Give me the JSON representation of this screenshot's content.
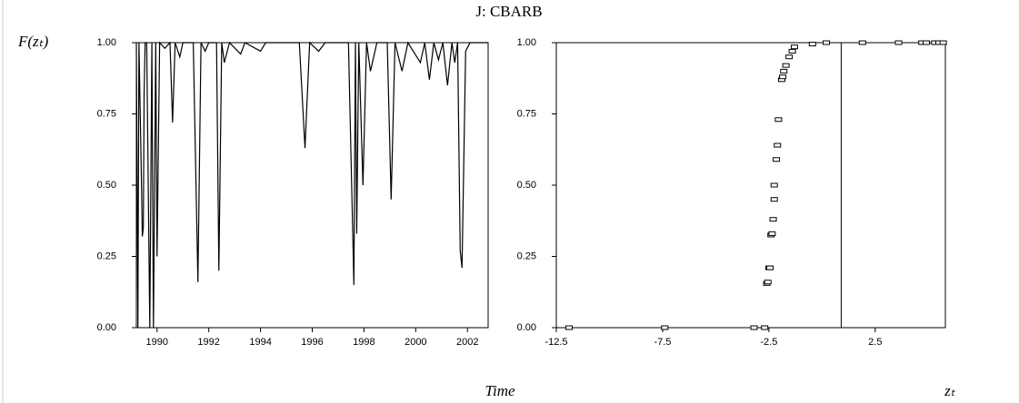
{
  "title": "J: CBARB",
  "y_label": "F(zₜ)",
  "chart_data": [
    {
      "type": "line",
      "x_label": "Time",
      "color": "#000000",
      "x": [
        1989.2,
        1989.26,
        1989.3,
        1989.4,
        1989.43,
        1989.47,
        1989.5,
        1989.54,
        1989.6,
        1989.72,
        1989.8,
        1989.86,
        1989.95,
        1990.0,
        1990.1,
        1990.3,
        1990.5,
        1990.6,
        1990.7,
        1990.88,
        1991.0,
        1991.4,
        1991.58,
        1991.7,
        1991.86,
        1992.0,
        1992.3,
        1992.39,
        1992.5,
        1992.6,
        1992.8,
        1993.23,
        1993.4,
        1994.0,
        1994.2,
        1995.5,
        1995.72,
        1995.9,
        1996.25,
        1996.5,
        1997.4,
        1997.61,
        1997.67,
        1997.72,
        1997.8,
        1997.96,
        1998.1,
        1998.25,
        1998.5,
        1998.9,
        1999.05,
        1999.2,
        1999.47,
        1999.7,
        2000.18,
        2000.35,
        2000.53,
        2000.7,
        2000.88,
        2001.05,
        2001.23,
        2001.4,
        2001.51,
        2001.62,
        2001.72,
        2001.79,
        2001.93,
        2002.1,
        2002.8
      ],
      "values": [
        1.0,
        0.0,
        1.0,
        0.5,
        0.32,
        0.35,
        0.82,
        1.0,
        1.0,
        0.0,
        1.0,
        0.0,
        1.0,
        0.25,
        1.0,
        0.98,
        1.0,
        0.72,
        1.0,
        0.95,
        1.0,
        1.0,
        0.16,
        1.0,
        0.97,
        1.0,
        1.0,
        0.2,
        1.0,
        0.93,
        1.0,
        0.96,
        1.0,
        0.97,
        1.0,
        1.0,
        0.63,
        1.0,
        0.97,
        1.0,
        1.0,
        0.15,
        1.0,
        0.33,
        1.0,
        0.5,
        1.0,
        0.9,
        1.0,
        1.0,
        0.45,
        1.0,
        0.9,
        1.0,
        0.93,
        1.0,
        0.87,
        1.0,
        0.94,
        1.0,
        0.85,
        1.0,
        0.93,
        1.0,
        0.27,
        0.21,
        0.97,
        1.0,
        1.0
      ],
      "xlim": [
        1989.2,
        2002.8
      ],
      "xticks": [
        1990,
        1992,
        1994,
        1996,
        1998,
        2000,
        2002
      ],
      "ylim": [
        0,
        1
      ],
      "yticks": [
        {
          "value": 0,
          "label": "0.00"
        },
        {
          "value": 0.25,
          "label": "0.25"
        },
        {
          "value": 0.5,
          "label": "0.50"
        },
        {
          "value": 0.75,
          "label": "0.75"
        },
        {
          "value": 1,
          "label": "1.00"
        }
      ]
    },
    {
      "type": "scatter",
      "x_label": "zₜ",
      "color": "#000000",
      "x": [
        -11.9,
        -7.4,
        -3.2,
        -2.7,
        -2.6,
        -2.55,
        -2.5,
        -2.45,
        -2.4,
        -2.35,
        -2.3,
        -2.25,
        -2.25,
        -2.15,
        -2.1,
        -2.05,
        -1.9,
        -1.85,
        -1.8,
        -1.7,
        -1.55,
        -1.4,
        -1.3,
        -0.45,
        0.2,
        1.9,
        3.6,
        4.7,
        4.9,
        5.3,
        5.5,
        5.7
      ],
      "values": [
        0,
        0,
        0,
        0,
        0.155,
        0.16,
        0.21,
        0.21,
        0.325,
        0.33,
        0.38,
        0.45,
        0.5,
        0.59,
        0.64,
        0.73,
        0.87,
        0.88,
        0.9,
        0.92,
        0.95,
        0.97,
        0.985,
        0.995,
        1,
        1,
        1,
        1,
        1,
        1,
        1,
        1
      ],
      "vlines": [
        0.9
      ],
      "xlim": [
        -12.5,
        5.8
      ],
      "xticks": [
        {
          "value": -12.5,
          "label": "-12.5"
        },
        {
          "value": -7.5,
          "label": "-7.5"
        },
        {
          "value": -2.5,
          "label": "-2.5"
        },
        {
          "value": 2.5,
          "label": "2.5"
        }
      ],
      "ylim": [
        0,
        1
      ],
      "yticks": [
        {
          "value": 0,
          "label": "0.00"
        },
        {
          "value": 0.25,
          "label": "0.25"
        },
        {
          "value": 0.5,
          "label": "0.50"
        },
        {
          "value": 0.75,
          "label": "0.75"
        },
        {
          "value": 1,
          "label": "1.00"
        }
      ]
    }
  ]
}
